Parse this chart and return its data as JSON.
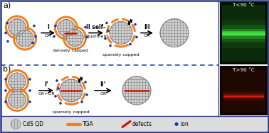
{
  "fig_width": 3.78,
  "fig_height": 1.88,
  "dpi": 100,
  "bg_color": "#ffffff",
  "border_color": "#2b3a8c",
  "divider_color": "#3344bb",
  "legend_bg": "#e0e0e0",
  "panel_a_label": "a)",
  "panel_b_label": "b)",
  "cds_color": "#c0c0c0",
  "tga_color": "#f08020",
  "defect_color": "#cc1100",
  "ion_color": "#1133cc",
  "temp_a": "T<90 °C",
  "temp_b": "T>90 °C",
  "photo_a_bg": "#050e05",
  "photo_b_bg": "#120500",
  "green_color": "#44ee44",
  "red_color": "#ee2200"
}
